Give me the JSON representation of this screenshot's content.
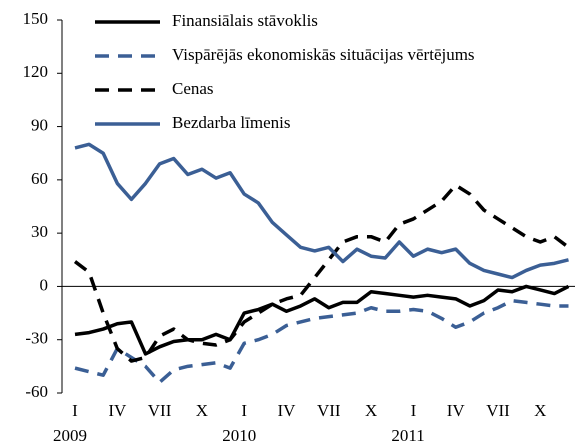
{
  "chart_data": {
    "type": "line",
    "categories": [
      "I",
      null,
      null,
      "IV",
      null,
      null,
      "VII",
      null,
      null,
      "X",
      null,
      null,
      "I",
      null,
      null,
      "IV",
      null,
      null,
      "VII",
      null,
      null,
      "X",
      null,
      null,
      "I",
      null,
      null,
      "IV",
      null,
      null,
      "VII",
      null,
      null,
      "X",
      null,
      null
    ],
    "years": [
      "2009",
      "2010",
      "2011"
    ],
    "ylim": [
      -60,
      150
    ],
    "yticks": [
      -60,
      -30,
      0,
      30,
      60,
      90,
      120,
      150
    ],
    "series": [
      {
        "name": "Finansiālais stāvoklis",
        "color": "#000000",
        "dash": false,
        "values": [
          -27,
          -26,
          -24,
          -21,
          -20,
          -38,
          -34,
          -31,
          -30,
          -30,
          -27,
          -30,
          -15,
          -13,
          -10,
          -14,
          -11,
          -7,
          -12,
          -9,
          -9,
          -3,
          -4,
          -5,
          -6,
          -5,
          -6,
          -7,
          -11,
          -8,
          -2,
          -3,
          0,
          -2,
          -4,
          0
        ]
      },
      {
        "name": "Vispārējās ekonomiskās situācijas vērtējums",
        "color": "#3b5f95",
        "dash": true,
        "values": [
          -46,
          -48,
          -50,
          -35,
          -40,
          -45,
          -54,
          -47,
          -45,
          -44,
          -43,
          -46,
          -32,
          -30,
          -27,
          -22,
          -20,
          -18,
          -17,
          -16,
          -15,
          -12,
          -14,
          -14,
          -13,
          -14,
          -18,
          -23,
          -20,
          -15,
          -12,
          -8,
          -9,
          -10,
          -11,
          -11
        ]
      },
      {
        "name": "Cenas",
        "color": "#000000",
        "dash": true,
        "values": [
          14,
          8,
          -15,
          -35,
          -42,
          -40,
          -28,
          -24,
          -30,
          -32,
          -33,
          -30,
          -20,
          -15,
          -10,
          -7,
          -5,
          5,
          15,
          25,
          28,
          28,
          25,
          35,
          38,
          43,
          48,
          57,
          52,
          43,
          38,
          33,
          28,
          25,
          28,
          22
        ]
      },
      {
        "name": "Bezdarba līmenis",
        "color": "#3b5f95",
        "dash": false,
        "values": [
          78,
          80,
          75,
          58,
          49,
          58,
          69,
          72,
          63,
          66,
          61,
          64,
          52,
          47,
          36,
          29,
          22,
          20,
          22,
          14,
          21,
          17,
          16,
          25,
          17,
          21,
          19,
          21,
          13,
          9,
          7,
          5,
          9,
          12,
          13,
          15
        ]
      }
    ]
  }
}
